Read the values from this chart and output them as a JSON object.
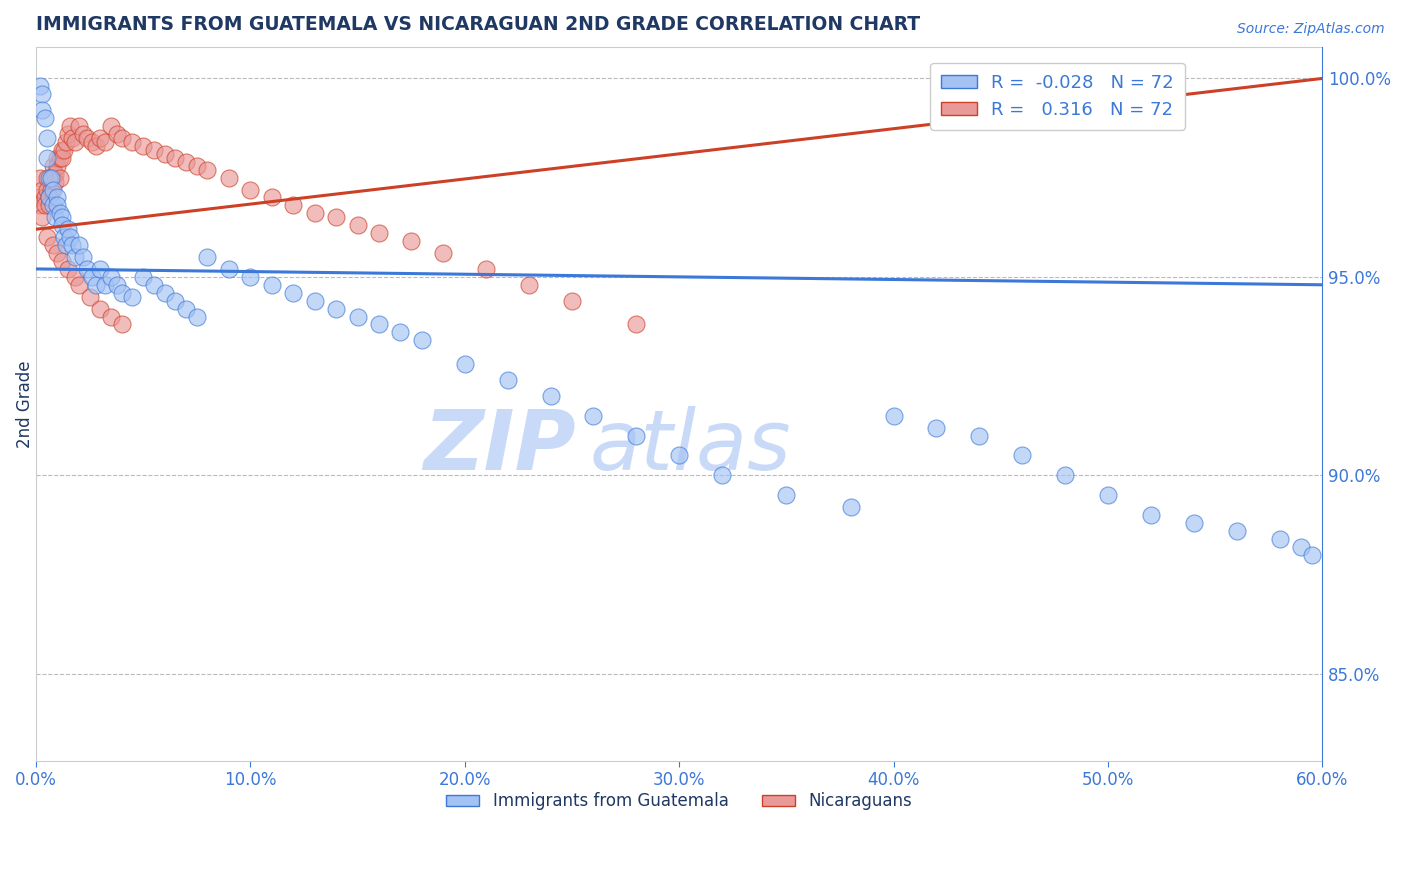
{
  "title": "IMMIGRANTS FROM GUATEMALA VS NICARAGUAN 2ND GRADE CORRELATION CHART",
  "source": "Source: ZipAtlas.com",
  "ylabel": "2nd Grade",
  "xmin": 0.0,
  "xmax": 0.6,
  "ymin": 0.828,
  "ymax": 1.008,
  "yticks": [
    0.85,
    0.9,
    0.95,
    1.0
  ],
  "ytick_labels": [
    "85.0%",
    "90.0%",
    "95.0%",
    "100.0%"
  ],
  "R_blue": -0.028,
  "N_blue": 72,
  "R_pink": 0.316,
  "N_pink": 72,
  "blue_color": "#a4c2f4",
  "pink_color": "#ea9999",
  "trend_blue": "#3c78d8",
  "trend_pink": "#cc4125",
  "legend_label_blue": "Immigrants from Guatemala",
  "legend_label_pink": "Nicaraguans",
  "title_color": "#1f3864",
  "axis_color": "#3c78d8",
  "watermark_zip": "ZIP",
  "watermark_atlas": "atlas",
  "watermark_color": "#c9daf8",
  "blue_scatter_x": [
    0.002,
    0.003,
    0.003,
    0.004,
    0.005,
    0.005,
    0.006,
    0.006,
    0.007,
    0.008,
    0.008,
    0.009,
    0.01,
    0.01,
    0.011,
    0.012,
    0.012,
    0.013,
    0.014,
    0.015,
    0.016,
    0.017,
    0.018,
    0.02,
    0.022,
    0.024,
    0.026,
    0.028,
    0.03,
    0.032,
    0.035,
    0.038,
    0.04,
    0.045,
    0.05,
    0.055,
    0.06,
    0.065,
    0.07,
    0.075,
    0.08,
    0.09,
    0.1,
    0.11,
    0.12,
    0.13,
    0.14,
    0.15,
    0.16,
    0.17,
    0.18,
    0.2,
    0.22,
    0.24,
    0.26,
    0.28,
    0.3,
    0.32,
    0.35,
    0.38,
    0.4,
    0.42,
    0.44,
    0.46,
    0.48,
    0.5,
    0.52,
    0.54,
    0.56,
    0.58,
    0.59,
    0.595
  ],
  "blue_scatter_y": [
    0.998,
    0.996,
    0.992,
    0.99,
    0.985,
    0.98,
    0.975,
    0.97,
    0.975,
    0.972,
    0.968,
    0.965,
    0.97,
    0.968,
    0.966,
    0.965,
    0.963,
    0.96,
    0.958,
    0.962,
    0.96,
    0.958,
    0.955,
    0.958,
    0.955,
    0.952,
    0.95,
    0.948,
    0.952,
    0.948,
    0.95,
    0.948,
    0.946,
    0.945,
    0.95,
    0.948,
    0.946,
    0.944,
    0.942,
    0.94,
    0.955,
    0.952,
    0.95,
    0.948,
    0.946,
    0.944,
    0.942,
    0.94,
    0.938,
    0.936,
    0.934,
    0.928,
    0.924,
    0.92,
    0.915,
    0.91,
    0.905,
    0.9,
    0.895,
    0.892,
    0.915,
    0.912,
    0.91,
    0.905,
    0.9,
    0.895,
    0.89,
    0.888,
    0.886,
    0.884,
    0.882,
    0.88
  ],
  "pink_scatter_x": [
    0.001,
    0.002,
    0.002,
    0.003,
    0.003,
    0.004,
    0.004,
    0.005,
    0.005,
    0.006,
    0.006,
    0.007,
    0.007,
    0.008,
    0.008,
    0.009,
    0.009,
    0.01,
    0.01,
    0.011,
    0.011,
    0.012,
    0.012,
    0.013,
    0.014,
    0.015,
    0.016,
    0.017,
    0.018,
    0.02,
    0.022,
    0.024,
    0.026,
    0.028,
    0.03,
    0.032,
    0.035,
    0.038,
    0.04,
    0.045,
    0.05,
    0.055,
    0.06,
    0.065,
    0.07,
    0.075,
    0.08,
    0.09,
    0.1,
    0.11,
    0.12,
    0.13,
    0.14,
    0.15,
    0.16,
    0.175,
    0.19,
    0.21,
    0.23,
    0.25,
    0.28,
    0.005,
    0.008,
    0.01,
    0.012,
    0.015,
    0.018,
    0.02,
    0.025,
    0.03,
    0.035,
    0.04
  ],
  "pink_scatter_y": [
    0.97,
    0.975,
    0.968,
    0.972,
    0.965,
    0.97,
    0.968,
    0.975,
    0.972,
    0.97,
    0.968,
    0.975,
    0.972,
    0.978,
    0.975,
    0.976,
    0.974,
    0.98,
    0.978,
    0.98,
    0.975,
    0.982,
    0.98,
    0.982,
    0.984,
    0.986,
    0.988,
    0.985,
    0.984,
    0.988,
    0.986,
    0.985,
    0.984,
    0.983,
    0.985,
    0.984,
    0.988,
    0.986,
    0.985,
    0.984,
    0.983,
    0.982,
    0.981,
    0.98,
    0.979,
    0.978,
    0.977,
    0.975,
    0.972,
    0.97,
    0.968,
    0.966,
    0.965,
    0.963,
    0.961,
    0.959,
    0.956,
    0.952,
    0.948,
    0.944,
    0.938,
    0.96,
    0.958,
    0.956,
    0.954,
    0.952,
    0.95,
    0.948,
    0.945,
    0.942,
    0.94,
    0.938
  ],
  "blue_trend_y0": 0.952,
  "blue_trend_y1": 0.948,
  "pink_trend_y0": 0.962,
  "pink_trend_y1": 1.0
}
